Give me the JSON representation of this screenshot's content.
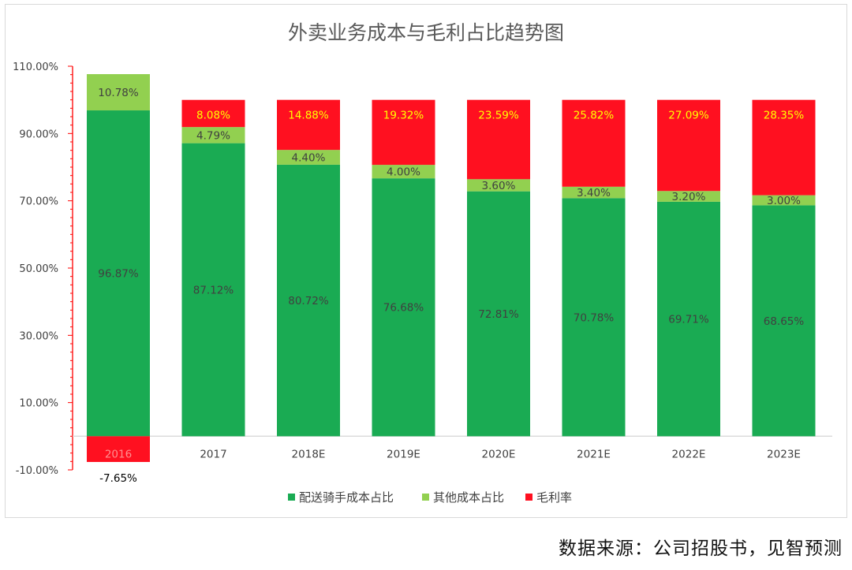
{
  "source_note": "数据来源：公司招股书，见智预测",
  "colors": {
    "rider_cost": "#1aab53",
    "other_cost": "#92d050",
    "gross_margin": "#ff1020",
    "margin_label": "#ffff00",
    "cost_label": "#404040",
    "axis_red": "#ff0000"
  },
  "chart_data": {
    "type": "bar",
    "stacked": true,
    "title": "外卖业务成本与毛利占比趋势图",
    "xlabel": "",
    "ylabel": "",
    "ylim": [
      -10,
      110
    ],
    "yticks": [
      -10,
      10,
      30,
      50,
      70,
      90,
      110
    ],
    "ytick_labels": [
      "-10.00%",
      "10.00%",
      "30.00%",
      "50.00%",
      "70.00%",
      "90.00%",
      "110.00%"
    ],
    "legend_position": "bottom",
    "categories": [
      "2016",
      "2017",
      "2018E",
      "2019E",
      "2020E",
      "2021E",
      "2022E",
      "2023E"
    ],
    "series": [
      {
        "name": "配送骑手成本占比",
        "values": [
          96.87,
          87.12,
          80.72,
          76.68,
          72.81,
          70.78,
          69.71,
          68.65
        ],
        "labels": [
          "96.87%",
          "87.12%",
          "80.72%",
          "76.68%",
          "72.81%",
          "70.78%",
          "69.71%",
          "68.65%"
        ]
      },
      {
        "name": "其他成本占比",
        "values": [
          10.78,
          4.79,
          4.4,
          4.0,
          3.6,
          3.4,
          3.2,
          3.0
        ],
        "labels": [
          "10.78%",
          "4.79%",
          "4.40%",
          "4.00%",
          "3.60%",
          "3.40%",
          "3.20%",
          "3.00%"
        ]
      },
      {
        "name": "毛利率",
        "values": [
          -7.65,
          8.08,
          14.88,
          19.32,
          23.59,
          25.82,
          27.09,
          28.35
        ],
        "labels": [
          "-7.65%",
          "8.08%",
          "14.88%",
          "19.32%",
          "23.59%",
          "25.82%",
          "27.09%",
          "28.35%"
        ]
      }
    ]
  }
}
